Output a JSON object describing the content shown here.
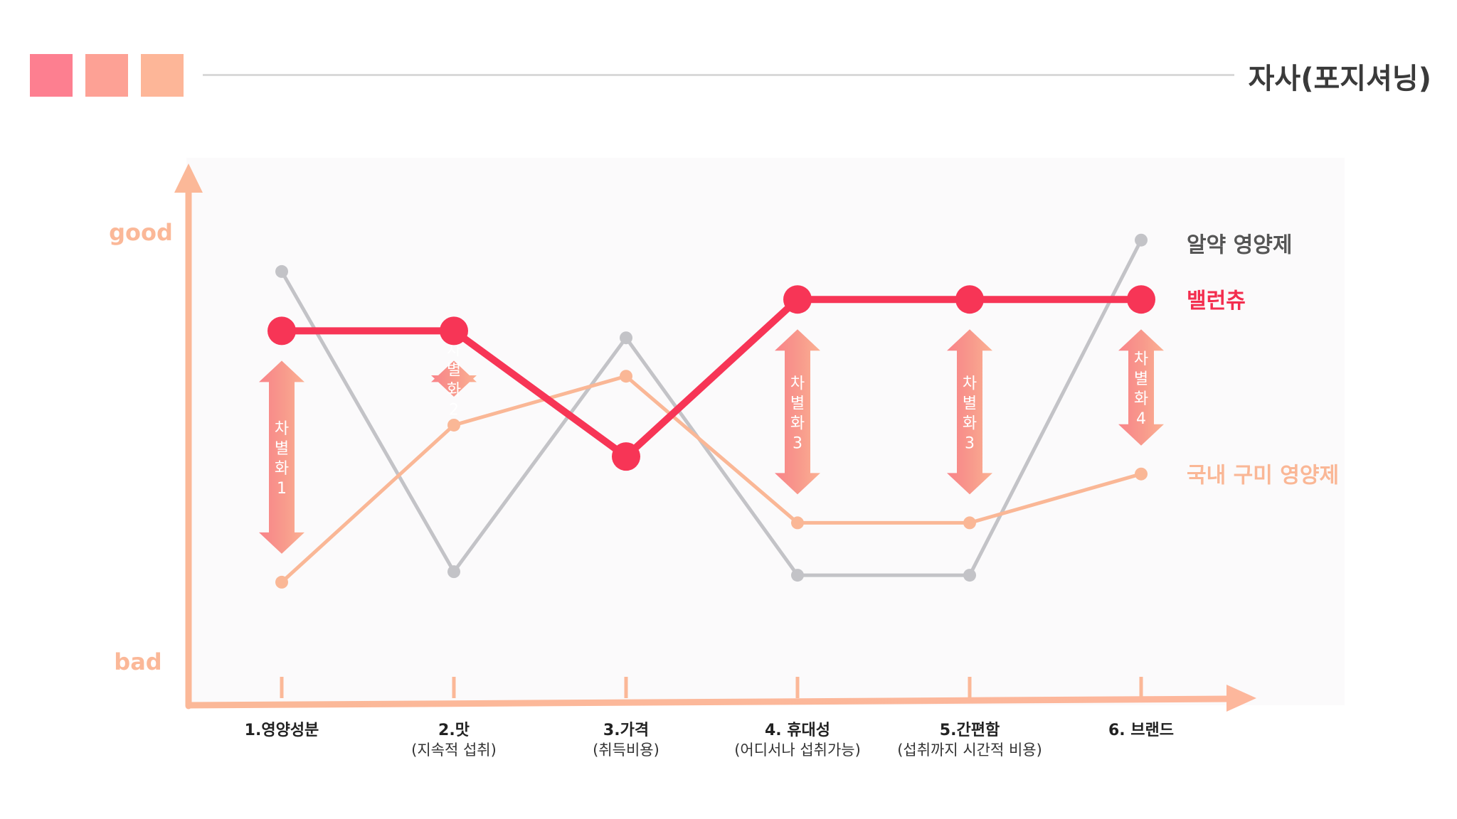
{
  "header": {
    "title": "자사(포지셔닝)",
    "squares": [
      "#fd7f90",
      "#fda195",
      "#fdb698"
    ]
  },
  "chart_data": {
    "type": "line",
    "y_axis": {
      "top_label": "good",
      "bottom_label": "bad",
      "ylim": [
        0,
        100
      ]
    },
    "x_axis": {
      "categories": [
        {
          "title": "1.영양성분",
          "sub": ""
        },
        {
          "title": "2.맛",
          "sub": "(지속적 섭취)"
        },
        {
          "title": "3.가격",
          "sub": "(취득비용)"
        },
        {
          "title": "4. 휴대성",
          "sub": "(어디서나 섭취가능)"
        },
        {
          "title": "5.간편함",
          "sub": "(섭취까지 시간적 비용)"
        },
        {
          "title": "6. 브랜드",
          "sub": ""
        }
      ]
    },
    "series": [
      {
        "name": "알약 영양제",
        "color": "#c3c3c7",
        "values": [
          99,
          13,
          80,
          12,
          12,
          108
        ]
      },
      {
        "name": "국내 구미 영양제",
        "color": "#fab796",
        "values": [
          10,
          55,
          69,
          27,
          27,
          41
        ]
      },
      {
        "name": "밸런츄",
        "color": "#f73556",
        "values": [
          82,
          82,
          46,
          91,
          91,
          91
        ]
      }
    ],
    "differentiation": [
      {
        "category_index": 0,
        "label": [
          "차",
          "별",
          "화",
          "1"
        ],
        "from": 10,
        "to": 82
      },
      {
        "category_index": 1,
        "label": [
          "차",
          "별",
          "화",
          "2"
        ],
        "from": 55,
        "to": 82
      },
      {
        "category_index": 3,
        "label": [
          "차",
          "별",
          "화",
          "3"
        ],
        "from": 27,
        "to": 91
      },
      {
        "category_index": 4,
        "label": [
          "차",
          "별",
          "화",
          "3"
        ],
        "from": 27,
        "to": 91
      },
      {
        "category_index": 5,
        "label": [
          "차",
          "별",
          "화",
          "4"
        ],
        "from": 41,
        "to": 91
      }
    ]
  }
}
